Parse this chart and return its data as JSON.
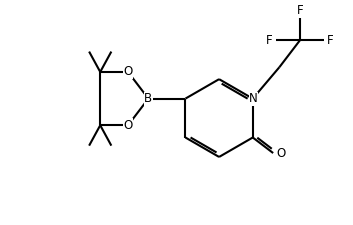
{
  "bg_color": "#ffffff",
  "lw": 1.5,
  "fs": 8.5,
  "figsize": [
    3.53,
    2.25
  ],
  "dpi": 100,
  "xlim": [
    0.2,
    9.0
  ],
  "ylim": [
    0.5,
    6.5
  ]
}
